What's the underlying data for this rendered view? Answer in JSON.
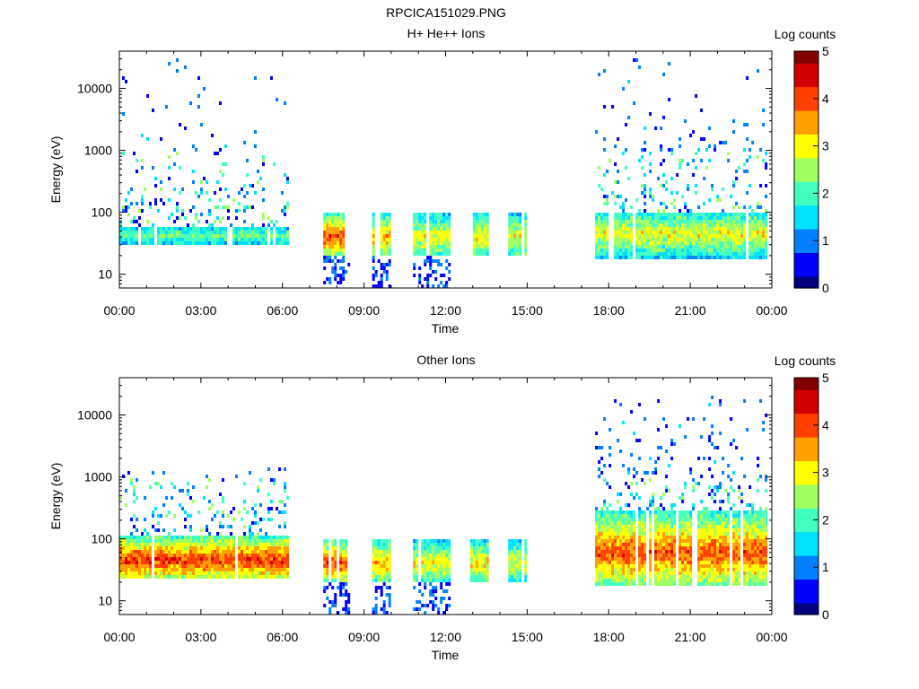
{
  "figure_title": "RPCICA151029.PNG",
  "colormap": [
    "#000080",
    "#0000ff",
    "#0080ff",
    "#00e0ff",
    "#40ffc0",
    "#a0ff60",
    "#ffff00",
    "#ffa000",
    "#ff4000",
    "#d00000",
    "#800000"
  ],
  "chart_data": [
    {
      "type": "heatmap",
      "title": "H+ He++ Ions",
      "xlabel": "Time",
      "ylabel": "Energy (eV)",
      "x_unit": "hours of day",
      "xlim": [
        0,
        24
      ],
      "x_ticks": [
        0,
        3,
        6,
        9,
        12,
        15,
        18,
        21,
        24
      ],
      "x_tick_labels": [
        "00:00",
        "03:00",
        "06:00",
        "09:00",
        "12:00",
        "15:00",
        "18:00",
        "21:00",
        "00:00"
      ],
      "y_scale": "log",
      "ylim": [
        6,
        40000
      ],
      "y_ticks": [
        10,
        100,
        1000,
        10000
      ],
      "y_tick_labels": [
        "10",
        "100",
        "1000",
        "10000"
      ],
      "colorbar": {
        "label": "Log counts",
        "range": [
          0,
          5
        ],
        "ticks": [
          0,
          1,
          2,
          3,
          4,
          5
        ],
        "tick_labels": [
          "0",
          "1",
          "2",
          "3",
          "4",
          "5"
        ]
      },
      "data_intervals": [
        {
          "start": 0.0,
          "end": 6.15,
          "core_low": 28,
          "core_high": 60,
          "peak_log_counts": 2.2,
          "peak_energy": 42,
          "sparse_to": 35000
        },
        {
          "start": 7.5,
          "end": 8.4,
          "core_low": 20,
          "core_high": 100,
          "peak_log_counts": 4.0,
          "peak_energy": 40,
          "sparse_to": 0
        },
        {
          "start": 9.3,
          "end": 9.9,
          "core_low": 20,
          "core_high": 100,
          "peak_log_counts": 3.5,
          "peak_energy": 40,
          "sparse_to": 0
        },
        {
          "start": 10.8,
          "end": 12.1,
          "core_low": 20,
          "core_high": 100,
          "peak_log_counts": 3.1,
          "peak_energy": 40,
          "sparse_to": 0
        },
        {
          "start": 12.9,
          "end": 13.5,
          "core_low": 20,
          "core_high": 100,
          "peak_log_counts": 3.2,
          "peak_energy": 40,
          "sparse_to": 0
        },
        {
          "start": 14.3,
          "end": 14.9,
          "core_low": 20,
          "core_high": 100,
          "peak_log_counts": 3.0,
          "peak_energy": 40,
          "sparse_to": 0
        },
        {
          "start": 17.5,
          "end": 23.8,
          "core_low": 18,
          "core_high": 100,
          "peak_log_counts": 3.0,
          "peak_energy": 45,
          "sparse_to": 35000
        }
      ]
    },
    {
      "type": "heatmap",
      "title": "Other Ions",
      "xlabel": "Time",
      "ylabel": "Energy (eV)",
      "x_unit": "hours of day",
      "xlim": [
        0,
        24
      ],
      "x_ticks": [
        0,
        3,
        6,
        9,
        12,
        15,
        18,
        21,
        24
      ],
      "x_tick_labels": [
        "00:00",
        "03:00",
        "06:00",
        "09:00",
        "12:00",
        "15:00",
        "18:00",
        "21:00",
        "00:00"
      ],
      "y_scale": "log",
      "ylim": [
        6,
        40000
      ],
      "y_ticks": [
        10,
        100,
        1000,
        10000
      ],
      "y_tick_labels": [
        "10",
        "100",
        "1000",
        "10000"
      ],
      "colorbar": {
        "label": "Log counts",
        "range": [
          0,
          5
        ],
        "ticks": [
          0,
          1,
          2,
          3,
          4,
          5
        ],
        "tick_labels": [
          "0",
          "1",
          "2",
          "3",
          "4",
          "5"
        ]
      },
      "data_intervals": [
        {
          "start": 0.0,
          "end": 6.15,
          "core_low": 22,
          "core_high": 110,
          "peak_log_counts": 4.2,
          "peak_energy": 45,
          "sparse_to": 1500
        },
        {
          "start": 7.5,
          "end": 8.4,
          "core_low": 20,
          "core_high": 100,
          "peak_log_counts": 4.0,
          "peak_energy": 40,
          "sparse_to": 0
        },
        {
          "start": 9.3,
          "end": 9.9,
          "core_low": 20,
          "core_high": 100,
          "peak_log_counts": 3.5,
          "peak_energy": 40,
          "sparse_to": 0
        },
        {
          "start": 10.8,
          "end": 12.1,
          "core_low": 20,
          "core_high": 100,
          "peak_log_counts": 3.1,
          "peak_energy": 40,
          "sparse_to": 0
        },
        {
          "start": 12.9,
          "end": 13.5,
          "core_low": 20,
          "core_high": 100,
          "peak_log_counts": 3.2,
          "peak_energy": 40,
          "sparse_to": 0
        },
        {
          "start": 14.3,
          "end": 14.9,
          "core_low": 20,
          "core_high": 100,
          "peak_log_counts": 3.0,
          "peak_energy": 40,
          "sparse_to": 0
        },
        {
          "start": 17.5,
          "end": 23.8,
          "core_low": 18,
          "core_high": 300,
          "peak_log_counts": 4.0,
          "peak_energy": 60,
          "sparse_to": 20000
        }
      ]
    }
  ]
}
